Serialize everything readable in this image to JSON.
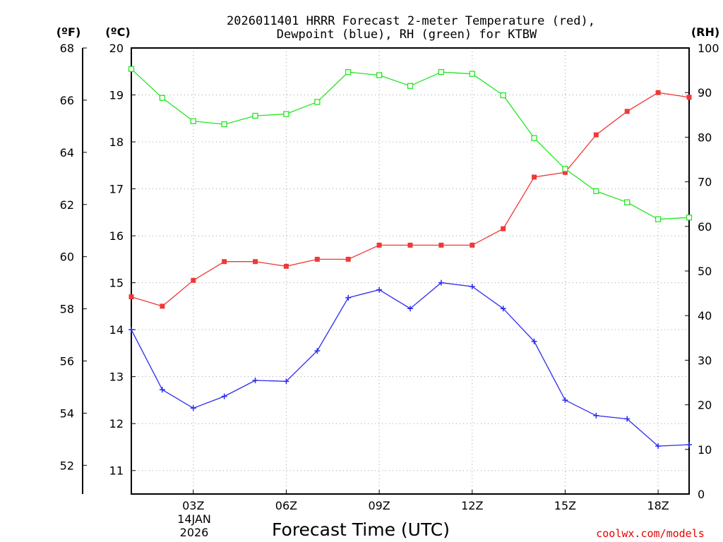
{
  "chart_data": {
    "type": "line",
    "title_lines": [
      "2026011401 HRRR Forecast 2-meter Temperature (red),",
      "Dewpoint (blue), RH (green) for KTBW"
    ],
    "xlabel": "Forecast Time (UTC)",
    "x_ticks": [
      {
        "hour": 3,
        "label": "03Z"
      },
      {
        "hour": 6,
        "label": "06Z"
      },
      {
        "hour": 9,
        "label": "09Z"
      },
      {
        "hour": 12,
        "label": "12Z"
      },
      {
        "hour": 15,
        "label": "15Z"
      },
      {
        "hour": 18,
        "label": "18Z"
      }
    ],
    "date_label_lines": [
      "14JAN",
      "2026"
    ],
    "xlim": [
      1,
      19
    ],
    "celsius_axis": {
      "unit_label": "(ºC)",
      "ylim": [
        10.5,
        20
      ],
      "ticks": [
        11,
        12,
        13,
        14,
        15,
        16,
        17,
        18,
        19,
        20
      ]
    },
    "fahrenheit_axis": {
      "unit_label": "(ºF)",
      "ticks": [
        52,
        54,
        56,
        58,
        60,
        62,
        64,
        66,
        68
      ]
    },
    "rh_axis": {
      "unit_label": "(RH)",
      "ylim": [
        0,
        100
      ],
      "ticks": [
        0,
        10,
        20,
        30,
        40,
        50,
        60,
        70,
        80,
        90,
        100
      ]
    },
    "x": [
      1,
      2,
      3,
      4,
      5,
      6,
      7,
      8,
      9,
      10,
      11,
      12,
      13,
      14,
      15,
      16,
      17,
      18,
      19
    ],
    "series": [
      {
        "name": "Temperature",
        "axis": "celsius",
        "color": "#ef3838",
        "marker": "filled-square",
        "values": [
          14.7,
          14.5,
          15.05,
          15.45,
          15.45,
          15.35,
          15.5,
          15.5,
          15.8,
          15.8,
          15.8,
          15.8,
          16.15,
          17.25,
          17.35,
          18.15,
          18.65,
          19.05,
          18.95
        ]
      },
      {
        "name": "Dewpoint",
        "axis": "celsius",
        "color": "#2a2af0",
        "marker": "plus",
        "values": [
          14.0,
          12.72,
          12.33,
          12.58,
          12.92,
          12.9,
          13.55,
          14.68,
          14.85,
          14.45,
          15.0,
          14.92,
          14.45,
          13.75,
          12.5,
          12.17,
          12.1,
          11.52,
          11.55
        ]
      },
      {
        "name": "RH",
        "axis": "rh",
        "color": "#22e622",
        "marker": "open-square",
        "values": [
          95.3,
          88.8,
          83.6,
          82.9,
          84.8,
          85.2,
          87.9,
          94.6,
          93.9,
          91.5,
          94.6,
          94.2,
          89.4,
          79.8,
          72.9,
          67.9,
          65.4,
          61.6,
          62.0
        ]
      }
    ]
  },
  "credit": "coolwx.com/models",
  "colors": {
    "frame": "#000000",
    "grid": "#a0a0a0"
  }
}
